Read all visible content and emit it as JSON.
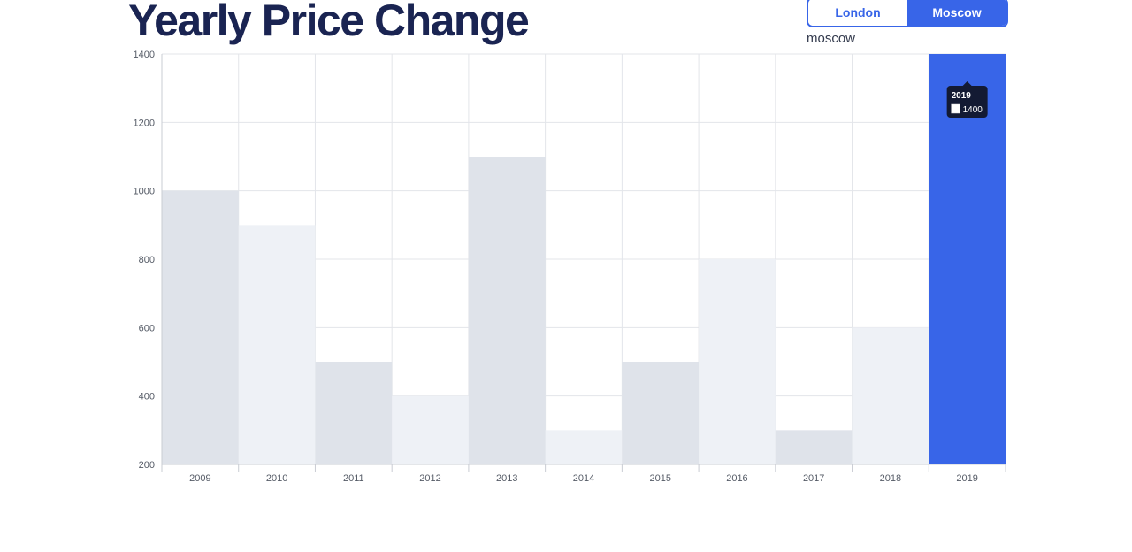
{
  "header": {
    "title": "Yearly Price Change"
  },
  "city_toggle": {
    "options": [
      "London",
      "Moscow"
    ],
    "selected": "Moscow"
  },
  "selected_city_label": "moscow",
  "tooltip": {
    "title": "2019",
    "value": "1400"
  },
  "colors": {
    "highlight": "#3865e8",
    "bar_a": "#dfe3ea",
    "bar_b": "#eef1f6",
    "grid": "#e3e5ea",
    "title": "#1a2452",
    "tooltip_bg": "#131a33"
  },
  "chart_data": {
    "type": "bar",
    "categories": [
      "2009",
      "2010",
      "2011",
      "2012",
      "2013",
      "2014",
      "2015",
      "2016",
      "2017",
      "2018",
      "2019"
    ],
    "values": [
      1000,
      900,
      500,
      400,
      1100,
      300,
      500,
      800,
      300,
      600,
      1400
    ],
    "title": "Yearly Price Change",
    "xlabel": "",
    "ylabel": "",
    "ylim": [
      200,
      1400
    ],
    "yticks": [
      200,
      400,
      600,
      800,
      1000,
      1200,
      1400
    ],
    "highlighted_category": "2019",
    "grid": true,
    "legend": "none"
  }
}
